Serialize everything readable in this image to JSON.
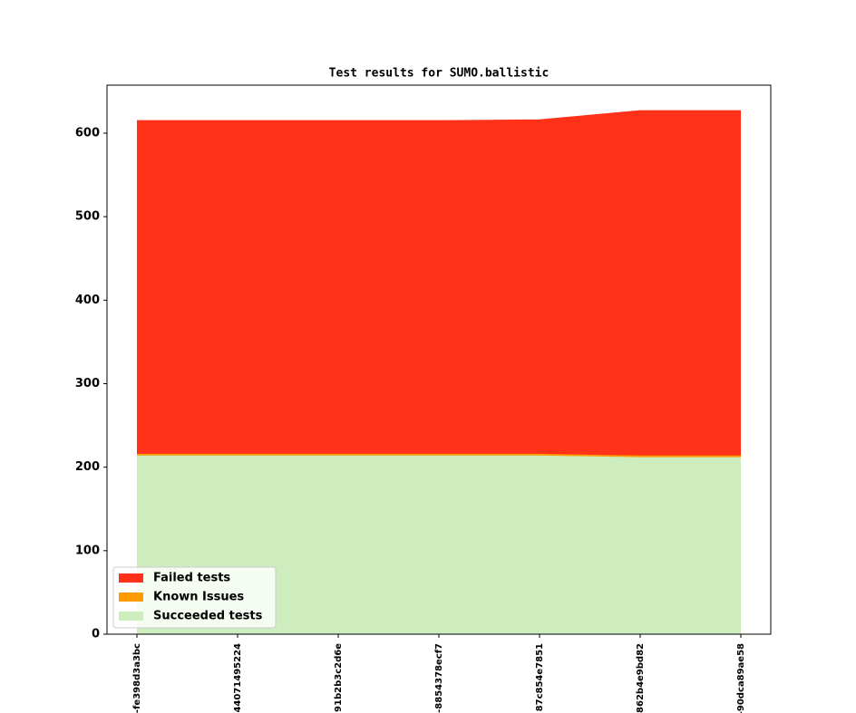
{
  "chart_data": {
    "type": "stacked_area",
    "title": "Test results for SUMO.ballistic",
    "categories": [
      "-fe398d3a3bc",
      "44071495224",
      "91b2b3c2d6e",
      "-8854378ecf7",
      "87c854e7851",
      "862b4e9bd82",
      "-90dca89ae58"
    ],
    "series": [
      {
        "name": "Failed tests",
        "color": "#ff3219",
        "values": [
          399,
          399,
          399,
          399,
          400,
          413,
          413
        ]
      },
      {
        "name": "Known Issues",
        "color": "#ff9a00",
        "values": [
          2,
          2,
          2,
          2,
          2,
          2,
          2
        ]
      },
      {
        "name": "Succeeded tests",
        "color": "#cdedbf",
        "values": [
          214,
          214,
          214,
          214,
          214,
          212,
          212
        ]
      }
    ],
    "ylim": [
      0,
      657.5
    ],
    "yticks": [
      0,
      100,
      200,
      300,
      400,
      500,
      600
    ],
    "legend": "lower left"
  }
}
